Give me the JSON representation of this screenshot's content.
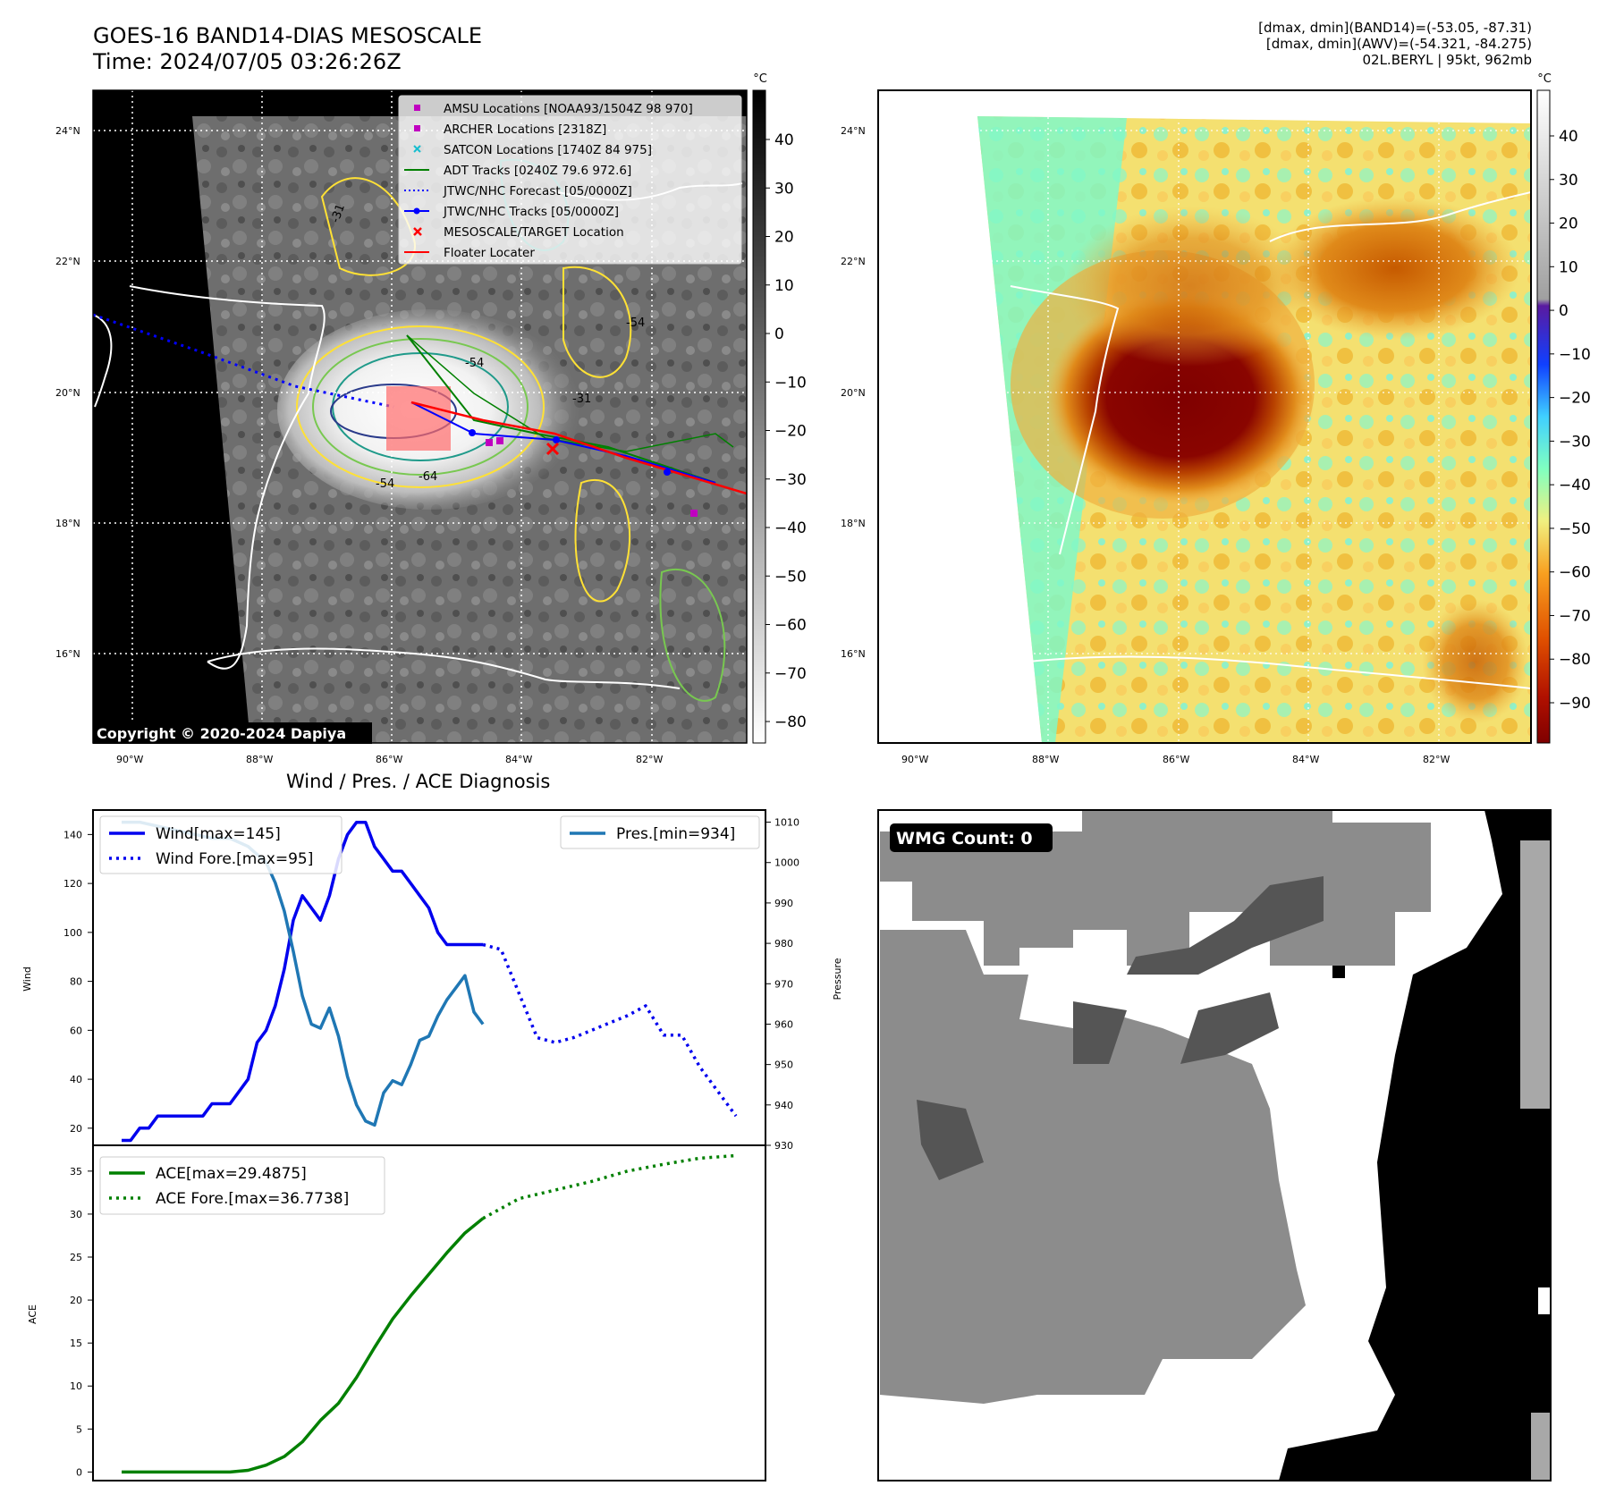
{
  "header": {
    "title_line1": "GOES-16 BAND14-DIAS MESOSCALE",
    "title_line2": "Time: 2024/07/05 03:26:26Z",
    "stat_line1": "[dmax, dmin](BAND14)=(-53.05, -87.31)",
    "stat_line2": "[dmax, dmin](AWV)=(-54.321, -84.275)",
    "stat_line3": "02L.BERYL | 95kt, 962mb"
  },
  "map": {
    "lon_labels": [
      "90°W",
      "88°W",
      "86°W",
      "84°W",
      "82°W"
    ],
    "lat_labels": [
      "24°N",
      "22°N",
      "20°N",
      "18°N",
      "16°N"
    ],
    "copyright": "Copyright © 2020-2024 Dapiya",
    "contour_labels": [
      "-31",
      "-54",
      "-64",
      "-54",
      "-31",
      "-54"
    ],
    "legend": [
      {
        "label": "AMSU Locations [NOAA93/1504Z 98 970]",
        "color": "#c000c0",
        "marker": "square"
      },
      {
        "label": "ARCHER Locations [2318Z]",
        "color": "#c000c0",
        "marker": "square"
      },
      {
        "label": "SATCON Locations [1740Z 84 975]",
        "color": "#17becf",
        "marker": "x"
      },
      {
        "label": "ADT Tracks [0240Z 79.6 972.6]",
        "color": "#008000",
        "marker": "line"
      },
      {
        "label": "JTWC/NHC Forecast [05/0000Z]",
        "color": "#0000ff",
        "marker": "dotted"
      },
      {
        "label": "JTWC/NHC Tracks [05/0000Z]",
        "color": "#0000ff",
        "marker": "line-dot"
      },
      {
        "label": "MESOSCALE/TARGET Location",
        "color": "#ff0000",
        "marker": "x"
      },
      {
        "label": "Floater Locater",
        "color": "#ff0000",
        "marker": "line"
      }
    ],
    "colorbar_unit": "°C",
    "gray_colorbar_ticks": [
      "40",
      "30",
      "20",
      "10",
      "0",
      "−10",
      "−20",
      "−30",
      "−40",
      "−50",
      "−60",
      "−70",
      "−80"
    ],
    "color_colorbar_ticks": [
      "40",
      "30",
      "20",
      "10",
      "0",
      "−10",
      "−20",
      "−30",
      "−40",
      "−50",
      "−60",
      "−70",
      "−80",
      "−90"
    ]
  },
  "wmg": {
    "label": "WMG Count: 0"
  },
  "chart_data": [
    {
      "type": "line",
      "title": "Wind / Pres. / ACE Diagnosis",
      "ylabel": "Wind",
      "ylabel_right": "Pressure",
      "ylim": [
        13,
        150
      ],
      "ylim_right": [
        930,
        1013
      ],
      "yticks": [
        "20",
        "40",
        "60",
        "80",
        "100",
        "120",
        "140"
      ],
      "yticks_right": [
        "930",
        "940",
        "950",
        "960",
        "970",
        "980",
        "990",
        "1000",
        "1010"
      ],
      "legend_left": [
        "Wind[max=145]",
        "Wind Fore.[max=95]"
      ],
      "legend_right": [
        "Pres.[min=934]"
      ],
      "series": [
        {
          "name": "Wind[max=145]",
          "color": "#0000ee",
          "style": "solid",
          "x": [
            0,
            1,
            2,
            3,
            4,
            5,
            6,
            7,
            8,
            9,
            10,
            11,
            12,
            13,
            14,
            15,
            16,
            17,
            18,
            19,
            20,
            21,
            22,
            23,
            24,
            25,
            26,
            27,
            28,
            29,
            30,
            31,
            32,
            33,
            34,
            35,
            36,
            37,
            38,
            39,
            40
          ],
          "values": [
            15,
            15,
            20,
            20,
            25,
            25,
            25,
            25,
            25,
            25,
            30,
            30,
            30,
            35,
            40,
            55,
            60,
            70,
            85,
            105,
            115,
            110,
            105,
            115,
            130,
            140,
            145,
            145,
            135,
            130,
            125,
            125,
            120,
            115,
            110,
            100,
            95,
            95,
            95,
            95,
            95
          ]
        },
        {
          "name": "Wind Fore.[max=95]",
          "color": "#0000ee",
          "style": "dotted",
          "x": [
            40,
            42,
            44,
            46,
            48,
            50,
            52,
            54,
            56,
            58,
            60,
            62,
            64,
            66,
            68
          ],
          "values": [
            95,
            93,
            75,
            57,
            55,
            57,
            60,
            63,
            66,
            70,
            58,
            58,
            45,
            35,
            25
          ]
        },
        {
          "name": "Pres.[min=934]",
          "color": "#1f77b4",
          "style": "solid",
          "x": [
            0,
            2,
            4,
            6,
            8,
            10,
            12,
            14,
            16,
            17,
            18,
            19,
            20,
            21,
            22,
            23,
            24,
            25,
            26,
            27,
            28,
            29,
            30,
            31,
            32,
            33,
            34,
            35,
            36,
            37,
            38,
            39,
            40
          ],
          "values": [
            1010,
            1010,
            1009,
            1008,
            1007,
            1006,
            1006,
            1004,
            1000,
            995,
            988,
            978,
            967,
            960,
            959,
            964,
            957,
            947,
            940,
            936,
            935,
            943,
            946,
            945,
            950,
            956,
            957,
            962,
            966,
            969,
            972,
            963,
            960
          ]
        }
      ]
    },
    {
      "type": "line",
      "ylabel": "ACE",
      "ylim": [
        -1,
        38
      ],
      "yticks": [
        "0",
        "5",
        "10",
        "15",
        "20",
        "25",
        "30",
        "35"
      ],
      "legend": [
        "ACE[max=29.4875]",
        "ACE Fore.[max=36.7738]"
      ],
      "series": [
        {
          "name": "ACE[max=29.4875]",
          "color": "#008000",
          "style": "solid",
          "x": [
            0,
            4,
            8,
            12,
            14,
            16,
            18,
            20,
            22,
            24,
            26,
            28,
            30,
            32,
            34,
            36,
            38,
            40
          ],
          "values": [
            0,
            0,
            0,
            0,
            0.2,
            0.8,
            1.8,
            3.5,
            6,
            8,
            11,
            14.5,
            17.8,
            20.5,
            23,
            25.5,
            27.8,
            29.5
          ]
        },
        {
          "name": "ACE Fore.[max=36.7738]",
          "color": "#008000",
          "style": "dotted",
          "x": [
            40,
            44,
            48,
            52,
            56,
            60,
            64,
            68
          ],
          "values": [
            29.5,
            31.8,
            32.8,
            33.8,
            35,
            35.8,
            36.5,
            36.8
          ]
        }
      ]
    }
  ]
}
